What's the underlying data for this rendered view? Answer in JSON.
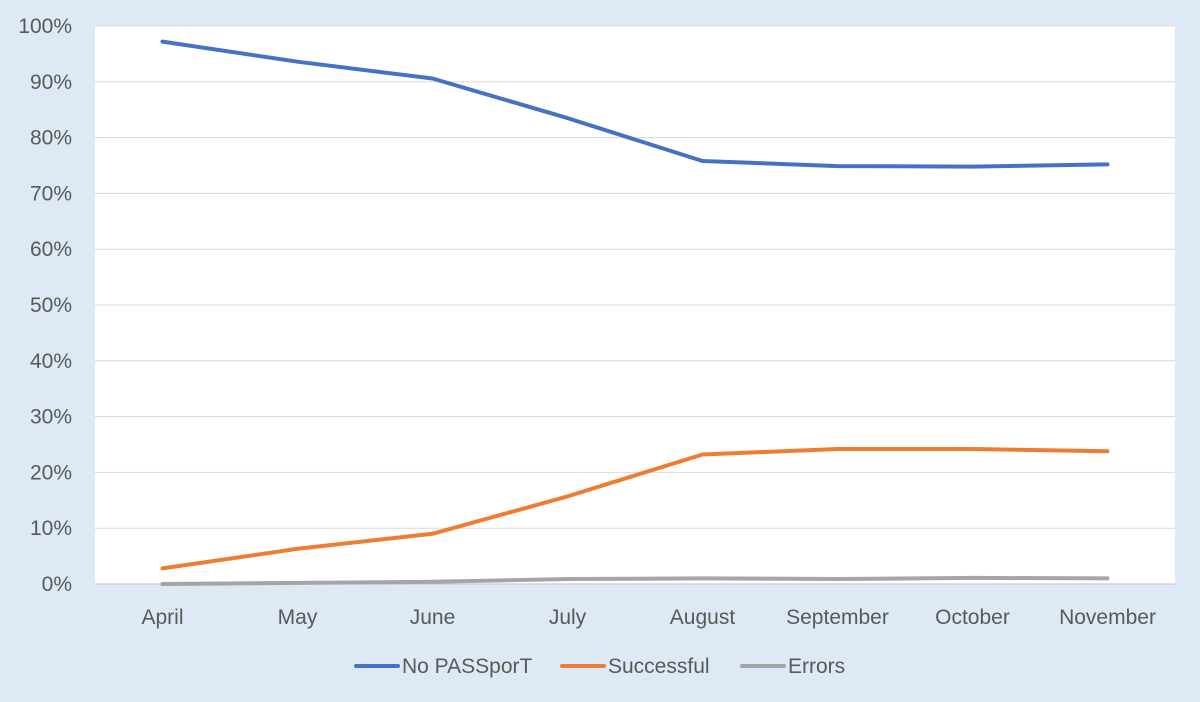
{
  "chart_data": {
    "type": "line",
    "title": "",
    "xlabel": "",
    "ylabel": "",
    "categories": [
      "April",
      "May",
      "June",
      "July",
      "August",
      "September",
      "October",
      "November"
    ],
    "ylim": [
      0,
      100
    ],
    "y_ticks": [
      "0%",
      "10%",
      "20%",
      "30%",
      "40%",
      "50%",
      "60%",
      "70%",
      "80%",
      "90%",
      "100%"
    ],
    "y_unit": "%",
    "grid": true,
    "legend_position": "bottom",
    "background_color": "#dde9f5",
    "plot_background_color": "#ffffff",
    "series": [
      {
        "name": "No PASSporT",
        "color": "#4472c4",
        "values": [
          97.2,
          93.6,
          90.6,
          83.5,
          75.8,
          74.9,
          74.8,
          75.2
        ]
      },
      {
        "name": "Successful",
        "color": "#ed7d31",
        "values": [
          2.8,
          6.3,
          9.0,
          15.7,
          23.2,
          24.2,
          24.2,
          23.8
        ]
      },
      {
        "name": "Errors",
        "color": "#a5a5a5",
        "values": [
          0.0,
          0.2,
          0.4,
          0.9,
          1.0,
          0.9,
          1.1,
          1.0
        ]
      }
    ]
  }
}
